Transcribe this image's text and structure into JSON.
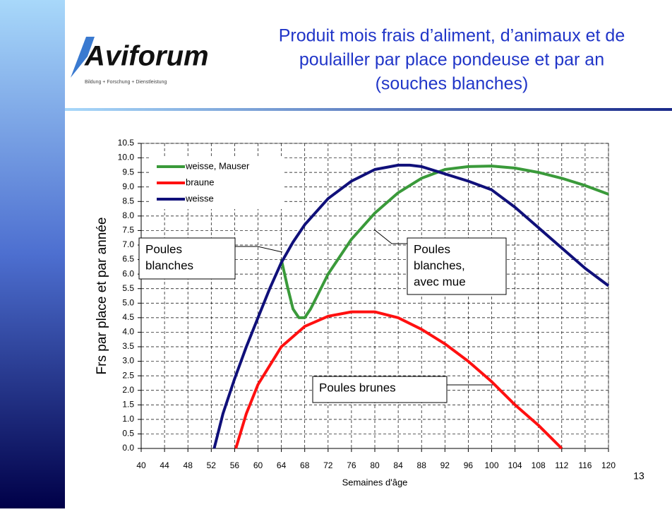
{
  "header": {
    "title_lines": [
      "Produit mois frais d’aliment, d’animaux et de",
      "poulailler par place pondeuse et par an",
      "(souches blanches)"
    ]
  },
  "logo": {
    "name": "Aviforum",
    "tagline": "Bildung + Forschung + Dienstleistung"
  },
  "page_number": "13",
  "chart_data": {
    "type": "line",
    "x_label": "Semaines d'âge",
    "y_label": "Frs par place et par année",
    "xlim": [
      40,
      120
    ],
    "xticks": [
      40,
      44,
      48,
      52,
      56,
      60,
      64,
      68,
      72,
      76,
      80,
      84,
      88,
      92,
      96,
      100,
      104,
      108,
      112,
      116,
      120
    ],
    "ylim": [
      0,
      10.5
    ],
    "yticks": [
      {
        "value": 0,
        "label": "0.0"
      },
      0.5,
      {
        "value": 1,
        "label": "1.0"
      },
      1.5,
      {
        "value": 2,
        "label": "2.0"
      },
      2.5,
      {
        "value": 3,
        "label": "3.0"
      },
      3.5,
      {
        "value": 4,
        "label": "4.0"
      },
      4.5,
      {
        "value": 5,
        "label": "5.0"
      },
      5.5,
      {
        "value": 6,
        "label": "6.0"
      },
      6.5,
      {
        "value": 7,
        "label": "7.0"
      },
      7.5,
      {
        "value": 8,
        "label": "8.0"
      },
      8.5,
      {
        "value": 9,
        "label": "9.0"
      },
      9.5,
      {
        "value": 10,
        "label": "10.0"
      },
      10.5
    ],
    "grid": true,
    "legend": "top-left",
    "series": [
      {
        "name": "weisse, Mauser",
        "color": "#3a9a3a",
        "x": [
          64,
          65,
          66,
          67,
          68,
          69,
          70,
          72,
          76,
          80,
          84,
          88,
          92,
          96,
          100,
          104,
          108,
          112,
          116,
          120
        ],
        "values": [
          6.5,
          5.6,
          4.8,
          4.5,
          4.5,
          4.8,
          5.2,
          6.0,
          7.2,
          8.1,
          8.8,
          9.3,
          9.6,
          9.7,
          9.72,
          9.65,
          9.5,
          9.3,
          9.05,
          8.75
        ]
      },
      {
        "name": "braune",
        "color": "#ff1010",
        "x": [
          56.2,
          58,
          60,
          64,
          68,
          72,
          76,
          80,
          84,
          88,
          92,
          96,
          100,
          104,
          108,
          112
        ],
        "values": [
          0,
          1.2,
          2.2,
          3.5,
          4.2,
          4.55,
          4.7,
          4.7,
          4.5,
          4.1,
          3.6,
          3.0,
          2.3,
          1.5,
          0.8,
          0
        ]
      },
      {
        "name": "weisse",
        "color": "#10107a",
        "x": [
          52.5,
          54,
          56,
          58,
          60,
          62,
          64,
          66,
          68,
          72,
          76,
          80,
          84,
          86,
          88,
          92,
          96,
          100,
          104,
          108,
          112,
          116,
          120
        ],
        "values": [
          0,
          1.2,
          2.4,
          3.5,
          4.5,
          5.5,
          6.4,
          7.1,
          7.7,
          8.6,
          9.2,
          9.6,
          9.75,
          9.75,
          9.7,
          9.45,
          9.2,
          8.9,
          8.3,
          7.6,
          6.9,
          6.2,
          5.6
        ]
      }
    ],
    "annotations": [
      {
        "lines": [
          "Poules",
          "blanches"
        ]
      },
      {
        "lines": [
          "Poules",
          "blanches,",
          "avec mue"
        ]
      },
      {
        "lines": [
          "Poules brunes"
        ]
      }
    ]
  }
}
